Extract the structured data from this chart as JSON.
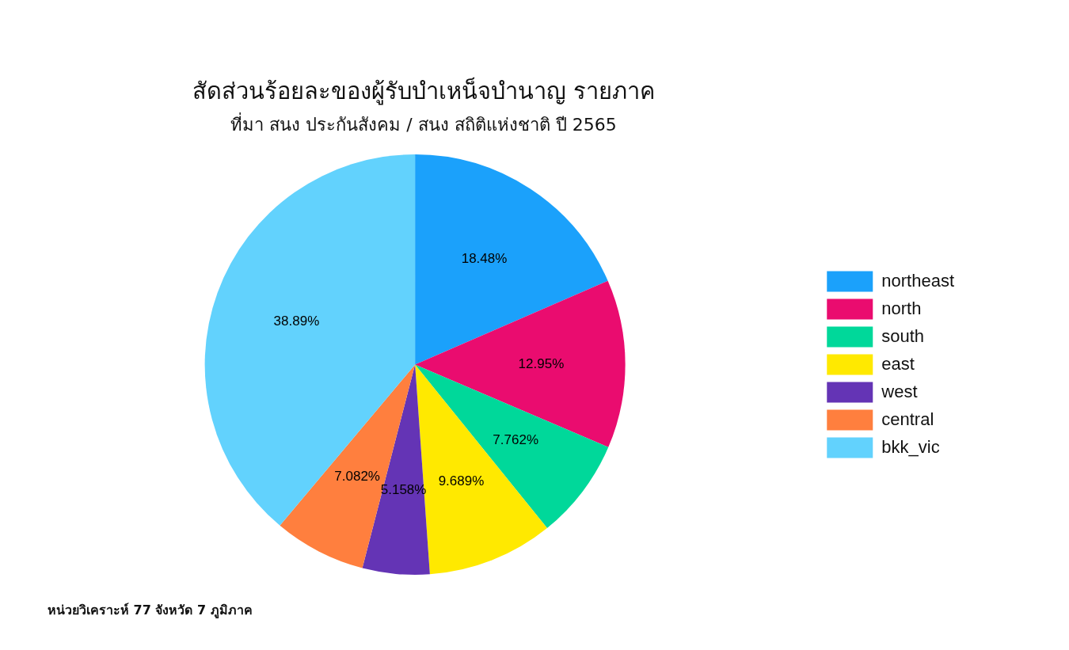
{
  "chart_data": {
    "type": "pie",
    "title": "สัดส่วนร้อยละของผู้รับบำเหน็จบำนาญ รายภาค",
    "subtitle": "ที่มา สนง ประกันสังคม / สนง สถิติแห่งชาติ ปี 2565",
    "categories": [
      "northeast",
      "north",
      "south",
      "east",
      "west",
      "central",
      "bkk_vic"
    ],
    "values": [
      18.48,
      12.95,
      7.762,
      9.689,
      5.158,
      7.082,
      38.89
    ],
    "colors": [
      "#1ba1fb",
      "#ea0c6f",
      "#00d89a",
      "#ffe900",
      "#6434b5",
      "#ff7f3e",
      "#62d2fd"
    ],
    "value_labels": [
      "18.48%",
      "12.95%",
      "7.762%",
      "9.689%",
      "5.158%",
      "7.082%",
      "38.89%"
    ],
    "legend": "right",
    "annotations": [
      "หน่วยวิเคราะห์ 77 จังหวัด 7 ภูมิภาค"
    ]
  }
}
